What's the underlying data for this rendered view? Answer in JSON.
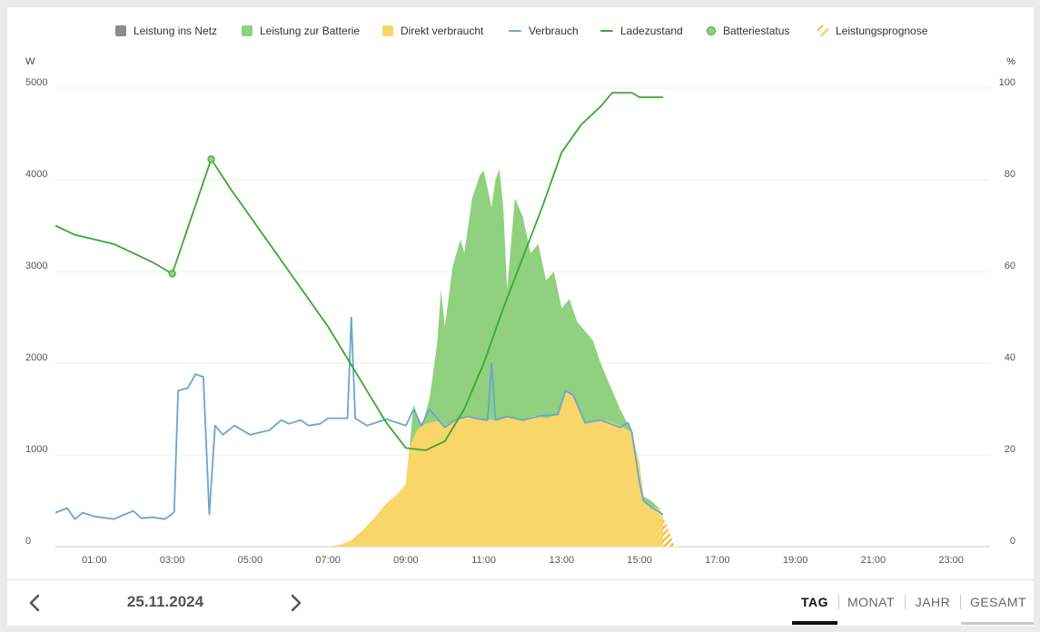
{
  "legend": [
    {
      "label": "Leistung ins Netz",
      "symbol": "square",
      "color": "#8c8c8c"
    },
    {
      "label": "Leistung zur Batterie",
      "symbol": "square",
      "color": "#8fd17e"
    },
    {
      "label": "Direkt verbraucht",
      "symbol": "square",
      "color": "#f8d66a"
    },
    {
      "label": "Verbrauch",
      "symbol": "line",
      "color": "#6aa6cf"
    },
    {
      "label": "Ladezustand",
      "symbol": "line",
      "color": "#3aa832"
    },
    {
      "label": "Batteriestatus",
      "symbol": "dot",
      "color": "#8fd17e"
    },
    {
      "label": "Leistungsprognose",
      "symbol": "hatch",
      "color": "#f5c242"
    }
  ],
  "chart_data": {
    "type": "area",
    "x_unit": "hours",
    "xlim": [
      0,
      24
    ],
    "x_tick_labels": [
      "01:00",
      "03:00",
      "05:00",
      "07:00",
      "09:00",
      "11:00",
      "13:00",
      "15:00",
      "17:00",
      "19:00",
      "21:00",
      "23:00"
    ],
    "y_left": {
      "unit": "W",
      "lim": [
        0,
        5000
      ],
      "ticks": [
        "0",
        "1000",
        "2000",
        "3000",
        "4000",
        "5000"
      ]
    },
    "y_right": {
      "unit": "%",
      "lim": [
        0,
        100
      ],
      "ticks": [
        "0",
        "20",
        "40",
        "60",
        "80",
        "100"
      ]
    },
    "grid": true,
    "legend_position": "top",
    "series": [
      {
        "name": "Direkt verbraucht",
        "kind": "area",
        "axis": "left",
        "color": "#f8d66a",
        "points": [
          [
            7.0,
            0
          ],
          [
            7.3,
            20
          ],
          [
            7.6,
            70
          ],
          [
            7.9,
            180
          ],
          [
            8.2,
            320
          ],
          [
            8.5,
            470
          ],
          [
            8.8,
            580
          ],
          [
            9.0,
            680
          ],
          [
            9.1,
            1100
          ],
          [
            9.3,
            1280
          ],
          [
            9.5,
            1340
          ],
          [
            9.8,
            1370
          ],
          [
            10.0,
            1320
          ],
          [
            10.3,
            1390
          ],
          [
            10.6,
            1420
          ],
          [
            11.0,
            1390
          ],
          [
            11.3,
            1380
          ],
          [
            11.6,
            1420
          ],
          [
            12.0,
            1380
          ],
          [
            12.3,
            1430
          ],
          [
            12.6,
            1400
          ],
          [
            12.9,
            1440
          ],
          [
            13.1,
            1700
          ],
          [
            13.3,
            1650
          ],
          [
            13.6,
            1350
          ],
          [
            13.9,
            1380
          ],
          [
            14.2,
            1370
          ],
          [
            14.5,
            1320
          ],
          [
            14.8,
            1250
          ],
          [
            15.0,
            900
          ],
          [
            15.1,
            500
          ],
          [
            15.3,
            440
          ],
          [
            15.5,
            410
          ],
          [
            15.6,
            330
          ]
        ]
      },
      {
        "name": "Leistung zur Batterie",
        "kind": "area_stacked_top",
        "axis": "left",
        "color": "#8fd17e",
        "points": [
          [
            9.0,
            680
          ],
          [
            9.2,
            1550
          ],
          [
            9.4,
            1300
          ],
          [
            9.6,
            1600
          ],
          [
            9.8,
            2200
          ],
          [
            9.9,
            2800
          ],
          [
            10.0,
            2400
          ],
          [
            10.2,
            3050
          ],
          [
            10.4,
            3350
          ],
          [
            10.5,
            3200
          ],
          [
            10.7,
            3800
          ],
          [
            10.9,
            4050
          ],
          [
            11.0,
            4100
          ],
          [
            11.1,
            3900
          ],
          [
            11.2,
            3700
          ],
          [
            11.3,
            4000
          ],
          [
            11.4,
            4120
          ],
          [
            11.5,
            3700
          ],
          [
            11.6,
            2800
          ],
          [
            11.7,
            3300
          ],
          [
            11.8,
            3800
          ],
          [
            12.0,
            3600
          ],
          [
            12.2,
            3200
          ],
          [
            12.4,
            3300
          ],
          [
            12.6,
            2900
          ],
          [
            12.8,
            3000
          ],
          [
            13.0,
            2600
          ],
          [
            13.2,
            2700
          ],
          [
            13.4,
            2450
          ],
          [
            13.6,
            2350
          ],
          [
            13.8,
            2250
          ],
          [
            14.0,
            2000
          ],
          [
            14.2,
            1800
          ],
          [
            14.5,
            1500
          ],
          [
            14.8,
            1250
          ],
          [
            15.0,
            900
          ],
          [
            15.1,
            550
          ],
          [
            15.3,
            500
          ],
          [
            15.5,
            420
          ],
          [
            15.6,
            330
          ]
        ]
      },
      {
        "name": "Leistungsprognose",
        "kind": "hatch",
        "axis": "left",
        "color": "#f5c242",
        "points": [
          [
            15.6,
            330
          ],
          [
            15.75,
            180
          ],
          [
            15.9,
            0
          ]
        ]
      },
      {
        "name": "Verbrauch",
        "kind": "line",
        "axis": "left",
        "color": "#6aa6cf",
        "points": [
          [
            0,
            370
          ],
          [
            0.3,
            420
          ],
          [
            0.5,
            300
          ],
          [
            0.7,
            370
          ],
          [
            1.0,
            330
          ],
          [
            1.5,
            300
          ],
          [
            2.0,
            390
          ],
          [
            2.2,
            310
          ],
          [
            2.5,
            320
          ],
          [
            2.8,
            300
          ],
          [
            2.95,
            340
          ],
          [
            3.05,
            380
          ],
          [
            3.15,
            1700
          ],
          [
            3.4,
            1730
          ],
          [
            3.6,
            1880
          ],
          [
            3.8,
            1850
          ],
          [
            3.95,
            350
          ],
          [
            4.1,
            1320
          ],
          [
            4.3,
            1220
          ],
          [
            4.6,
            1320
          ],
          [
            5.0,
            1220
          ],
          [
            5.5,
            1270
          ],
          [
            5.8,
            1380
          ],
          [
            6.0,
            1340
          ],
          [
            6.3,
            1380
          ],
          [
            6.5,
            1320
          ],
          [
            6.8,
            1340
          ],
          [
            7.0,
            1400
          ],
          [
            7.5,
            1400
          ],
          [
            7.6,
            2500
          ],
          [
            7.7,
            1400
          ],
          [
            8.0,
            1320
          ],
          [
            8.5,
            1390
          ],
          [
            9.0,
            1320
          ],
          [
            9.2,
            1500
          ],
          [
            9.4,
            1320
          ],
          [
            9.6,
            1500
          ],
          [
            10.0,
            1300
          ],
          [
            10.3,
            1390
          ],
          [
            10.6,
            1420
          ],
          [
            10.9,
            1390
          ],
          [
            11.1,
            1380
          ],
          [
            11.2,
            2000
          ],
          [
            11.3,
            1380
          ],
          [
            11.6,
            1420
          ],
          [
            12.0,
            1380
          ],
          [
            12.5,
            1430
          ],
          [
            12.9,
            1440
          ],
          [
            13.1,
            1700
          ],
          [
            13.3,
            1650
          ],
          [
            13.6,
            1350
          ],
          [
            14.0,
            1380
          ],
          [
            14.5,
            1300
          ],
          [
            14.7,
            1350
          ],
          [
            14.8,
            1250
          ],
          [
            15.0,
            700
          ],
          [
            15.1,
            500
          ],
          [
            15.3,
            430
          ],
          [
            15.5,
            380
          ],
          [
            15.6,
            350
          ]
        ]
      },
      {
        "name": "Ladezustand",
        "kind": "line",
        "axis": "right",
        "color": "#3aa832",
        "points": [
          [
            0,
            70
          ],
          [
            0.5,
            68
          ],
          [
            1.0,
            67
          ],
          [
            1.5,
            66
          ],
          [
            2.0,
            64
          ],
          [
            2.5,
            62
          ],
          [
            2.9,
            60
          ],
          [
            3.0,
            59.5
          ],
          [
            4.0,
            84.5
          ],
          [
            4.5,
            78
          ],
          [
            5.0,
            72
          ],
          [
            5.5,
            66
          ],
          [
            6.0,
            60
          ],
          [
            6.5,
            54
          ],
          [
            7.0,
            48
          ],
          [
            7.5,
            41
          ],
          [
            8.0,
            34
          ],
          [
            8.5,
            27
          ],
          [
            9.0,
            21.5
          ],
          [
            9.5,
            21
          ],
          [
            10.0,
            23
          ],
          [
            10.5,
            30
          ],
          [
            11.0,
            40
          ],
          [
            11.5,
            52
          ],
          [
            12.0,
            63
          ],
          [
            12.5,
            74
          ],
          [
            13.0,
            86
          ],
          [
            13.5,
            92
          ],
          [
            14.0,
            96
          ],
          [
            14.3,
            99
          ],
          [
            14.8,
            99
          ],
          [
            15.0,
            98
          ],
          [
            15.3,
            98
          ],
          [
            15.6,
            98
          ]
        ]
      },
      {
        "name": "Batteriestatus",
        "kind": "markers",
        "axis": "right",
        "color": "#8fd17e",
        "points": [
          [
            3.0,
            59.5
          ],
          [
            4.0,
            84.5
          ]
        ]
      }
    ]
  },
  "footer": {
    "prev_icon": "chevron-left-icon",
    "next_icon": "chevron-right-icon",
    "date": "25.11.2024",
    "tabs": [
      {
        "label": "TAG",
        "active": true
      },
      {
        "label": "MONAT",
        "active": false
      },
      {
        "label": "JAHR",
        "active": false
      },
      {
        "label": "GESAMT",
        "active": false
      }
    ]
  }
}
